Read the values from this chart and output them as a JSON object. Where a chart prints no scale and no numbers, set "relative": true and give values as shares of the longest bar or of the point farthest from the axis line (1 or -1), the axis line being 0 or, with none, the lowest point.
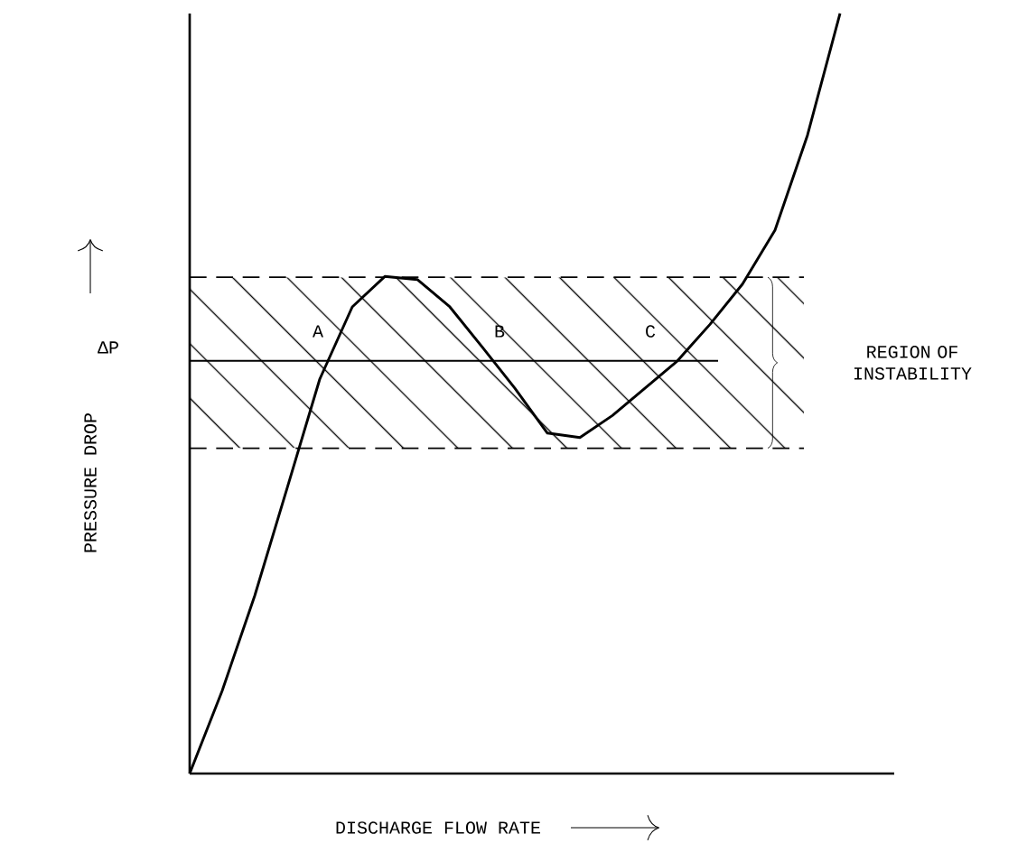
{
  "chart_data": {
    "type": "line",
    "relative": true,
    "xlabel": "DISCHARGE FLOW RATE",
    "ylabel": "PRESSURE DROP",
    "categories": [
      null,
      null,
      null,
      null,
      null,
      null,
      null,
      null,
      null,
      null,
      null,
      null,
      null,
      null,
      null,
      null,
      null,
      null,
      null,
      null,
      null
    ],
    "series": [
      {
        "color": "#000000",
        "values": [
          0,
          0.109,
          0.234,
          0.376,
          0.519,
          0.614,
          0.654,
          0.65,
          0.614,
          0.561,
          0.507,
          0.448,
          0.442,
          0.471,
          0.507,
          0.543,
          0.591,
          0.644,
          0.715,
          0.84,
          1
        ]
      }
    ],
    "bands": [
      {
        "axis": "y",
        "from": 0.428,
        "to": 0.653,
        "label": "REGION OF INSTABILITY"
      }
    ],
    "ref_lines": [
      {
        "axis": "y",
        "value": 0.543
      },
      {
        "axis": "y",
        "value": 0.428,
        "line_style": "dashed"
      },
      {
        "axis": "y",
        "value": 0.653,
        "line_style": "dashed"
      }
    ],
    "annotations": [
      "ΔP",
      "A",
      "B",
      "C"
    ],
    "legend": false,
    "marker": "none",
    "line_style": "solid"
  }
}
